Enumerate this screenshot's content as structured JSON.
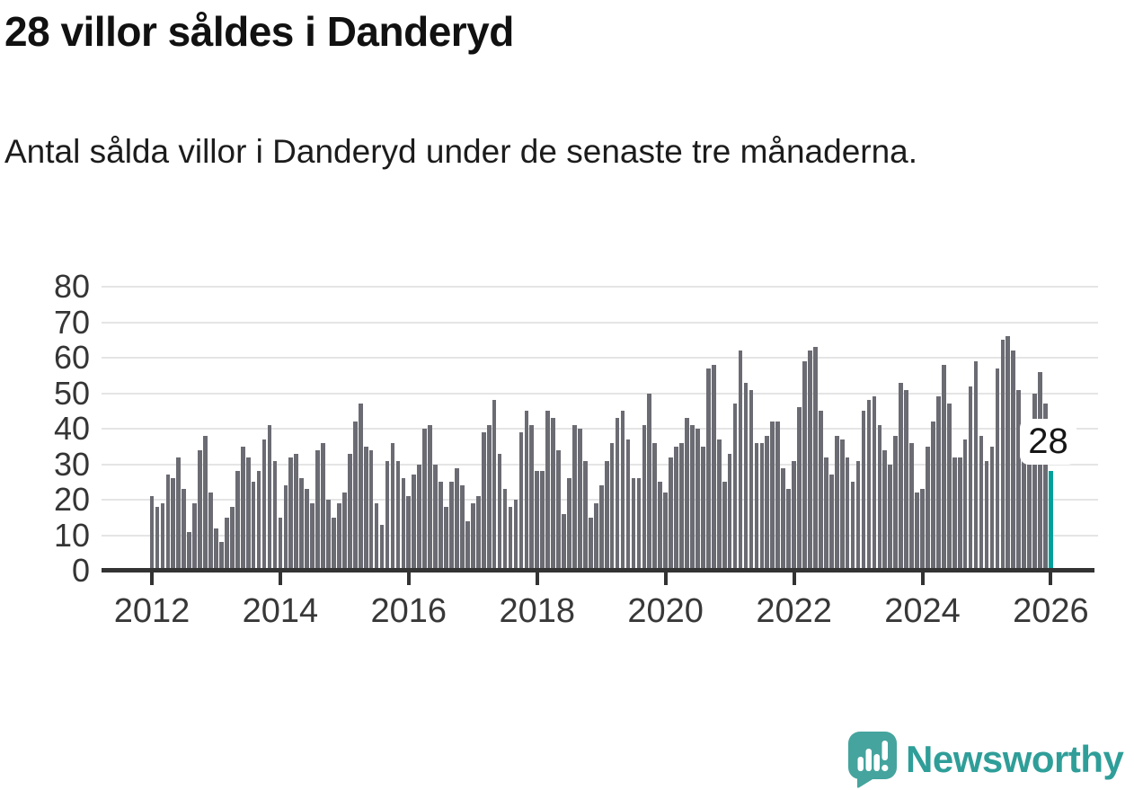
{
  "header": {
    "title": "28 villor såldes i Danderyd",
    "subtitle": "Antal sålda villor i Danderyd under de senaste tre månaderna."
  },
  "annotation": {
    "label": "28"
  },
  "logo": {
    "text": "Newsworthy",
    "icon": "newsworthy-speech-bubble-chart-icon"
  },
  "colors": {
    "bar": "#6b6b73",
    "highlight": "#00a09c",
    "grid": "#e5e5e5",
    "axis": "#333333",
    "tick_label": "#383838",
    "title_text": "#111111",
    "logo_icon": "#45a49e",
    "logo_text": "#2f9e99",
    "annotation_bg": "#ffffff"
  },
  "chart_data": {
    "type": "bar",
    "title": "28 villor såldes i Danderyd",
    "xlabel": "",
    "ylabel": "",
    "x_start": "2012-01",
    "x_end": "2026-01",
    "frequency": "monthly",
    "x_ticks": [
      2012,
      2014,
      2016,
      2018,
      2020,
      2022,
      2024,
      2026
    ],
    "y_ticks": [
      0,
      10,
      20,
      30,
      40,
      50,
      60,
      70,
      80
    ],
    "ylim": [
      0,
      80
    ],
    "grid": "horizontal",
    "legend": "none",
    "highlight_last": true,
    "last_value_label": "28",
    "values": [
      21,
      18,
      19,
      27,
      26,
      32,
      23,
      11,
      19,
      34,
      38,
      22,
      12,
      8,
      15,
      18,
      28,
      35,
      32,
      25,
      28,
      37,
      41,
      31,
      15,
      24,
      32,
      33,
      26,
      23,
      19,
      34,
      36,
      20,
      15,
      19,
      22,
      33,
      42,
      47,
      35,
      34,
      19,
      13,
      31,
      36,
      31,
      26,
      21,
      27,
      30,
      40,
      41,
      30,
      25,
      18,
      25,
      29,
      24,
      14,
      19,
      21,
      39,
      41,
      48,
      33,
      23,
      18,
      20,
      39,
      45,
      41,
      28,
      28,
      45,
      43,
      34,
      16,
      26,
      41,
      40,
      31,
      15,
      19,
      24,
      31,
      36,
      43,
      45,
      37,
      26,
      26,
      41,
      50,
      36,
      25,
      22,
      32,
      35,
      36,
      43,
      41,
      40,
      35,
      57,
      58,
      37,
      25,
      33,
      47,
      62,
      53,
      51,
      36,
      36,
      38,
      42,
      42,
      29,
      23,
      31,
      46,
      59,
      62,
      63,
      45,
      32,
      27,
      38,
      37,
      32,
      25,
      31,
      45,
      48,
      49,
      41,
      34,
      30,
      38,
      53,
      51,
      36,
      22,
      23,
      35,
      42,
      49,
      58,
      47,
      32,
      32,
      37,
      52,
      59,
      38,
      31,
      35,
      57,
      65,
      66,
      62,
      51,
      41,
      41,
      50,
      56,
      47,
      28
    ]
  }
}
